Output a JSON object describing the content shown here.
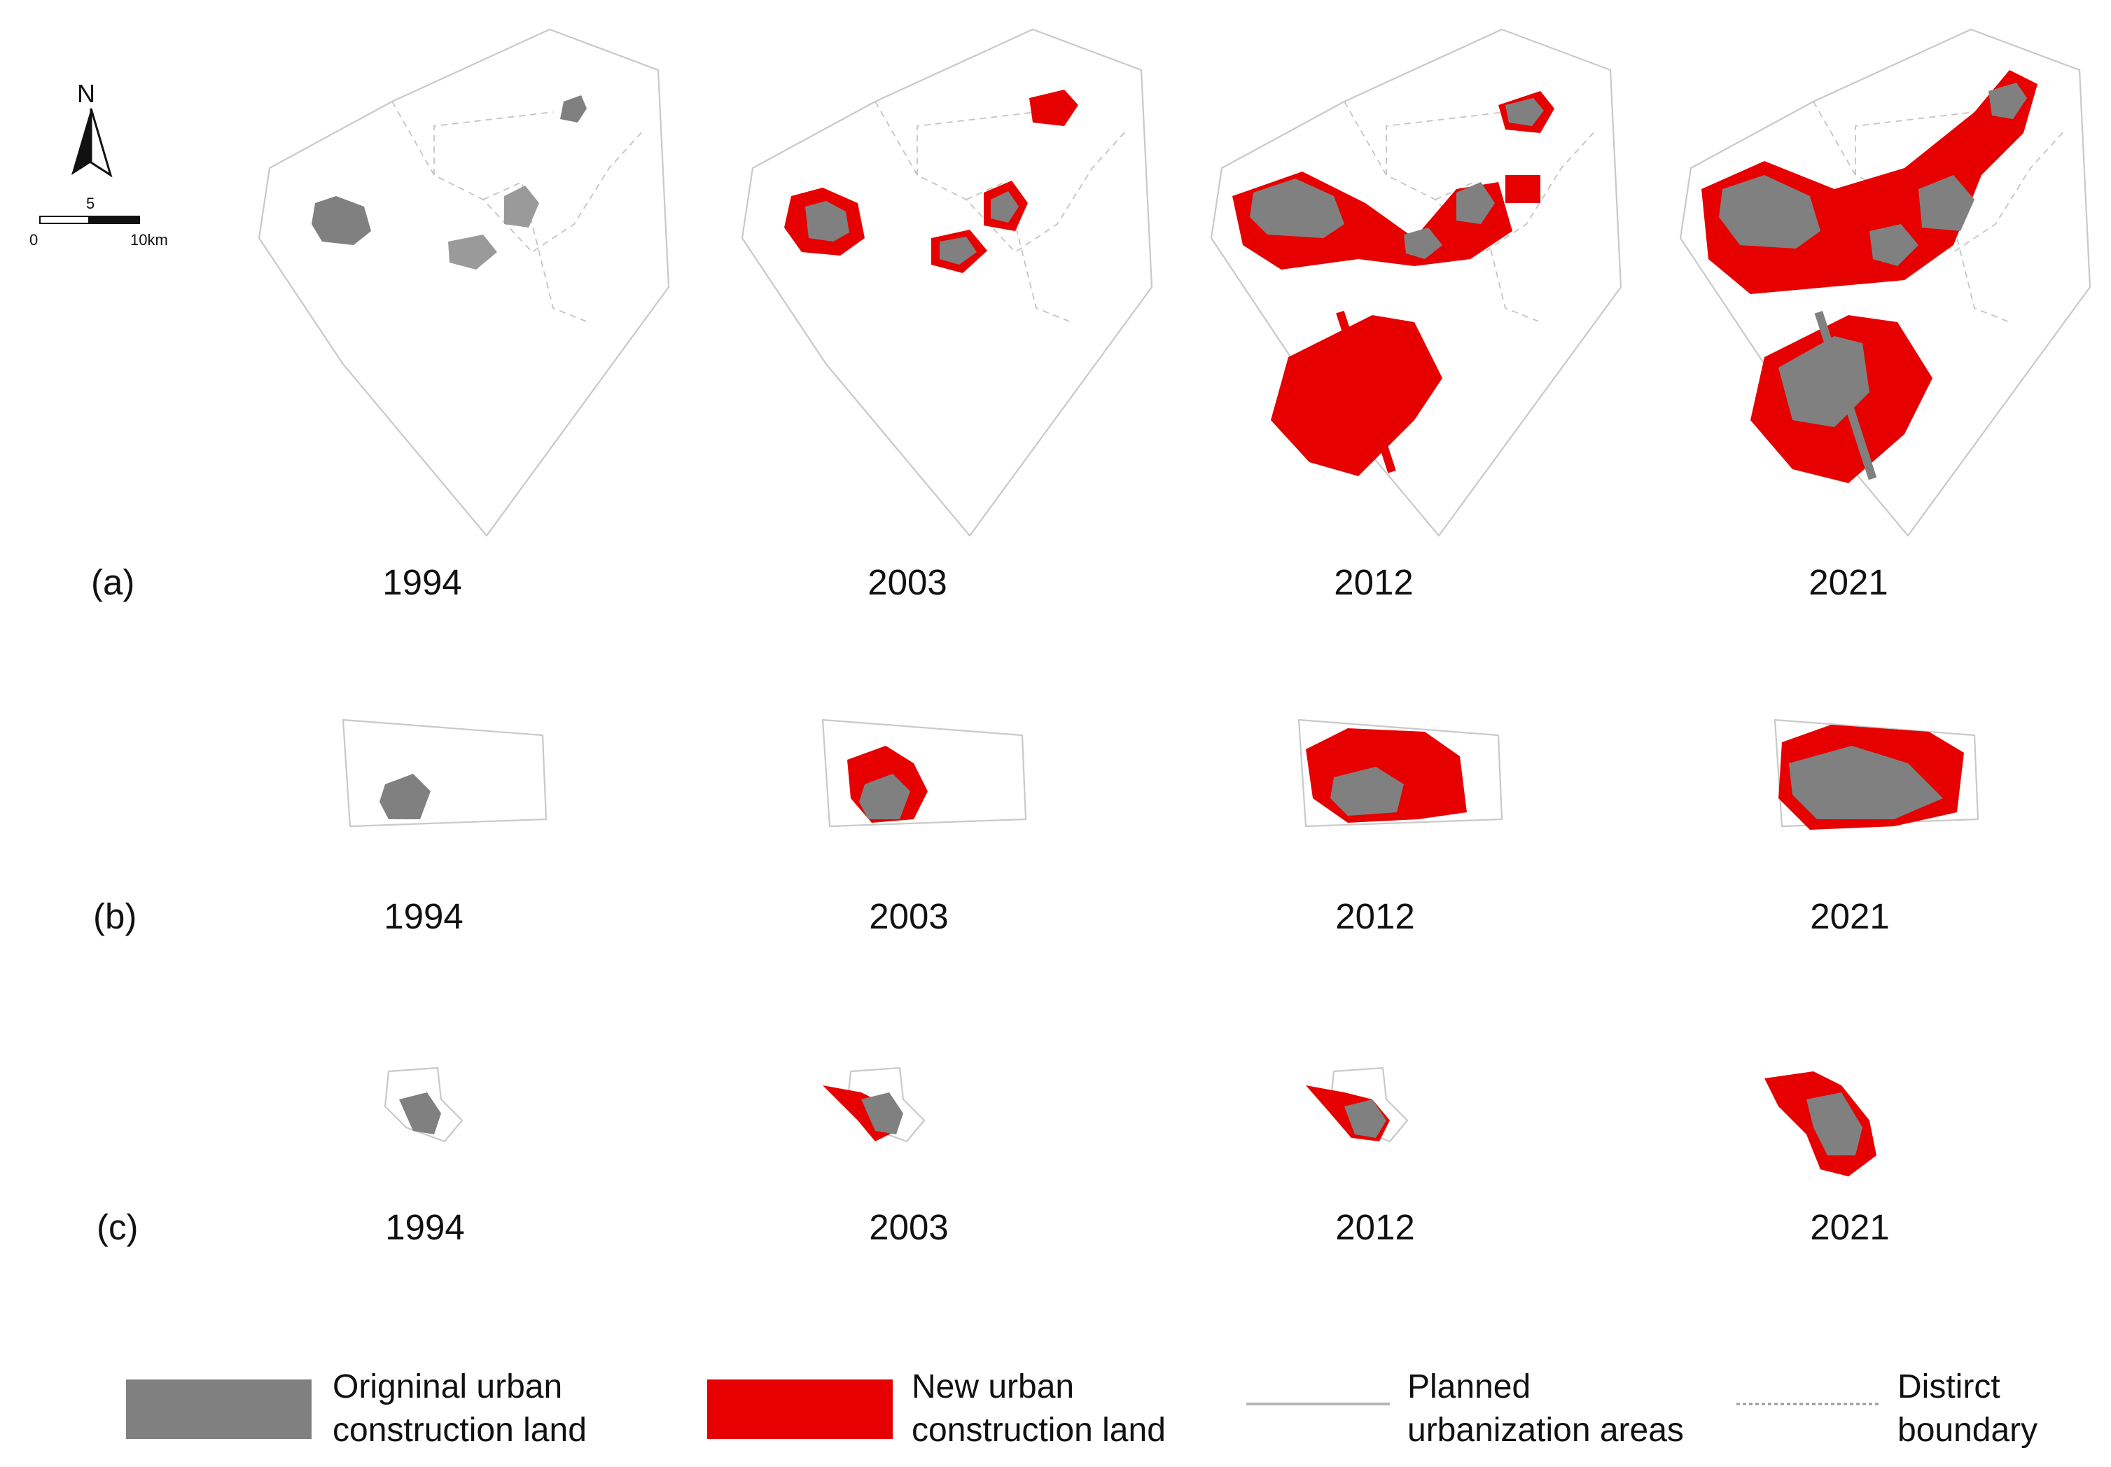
{
  "rows": [
    {
      "letter": "(a)",
      "years": [
        "1994",
        "2003",
        "2012",
        "2021"
      ]
    },
    {
      "letter": "(b)",
      "years": [
        "1994",
        "2003",
        "2012",
        "2021"
      ]
    },
    {
      "letter": "(c)",
      "years": [
        "1994",
        "2003",
        "2012",
        "2021"
      ]
    }
  ],
  "north_arrow": {
    "label": "N",
    "icon": "north-arrow-icon"
  },
  "scale_bar": {
    "mid_label": "5",
    "start_label": "0",
    "end_label": "10km"
  },
  "legend": [
    {
      "line1": "Origninal urban",
      "line2": "construction land",
      "symbol": "fill",
      "color": "#808080"
    },
    {
      "line1": "New urban",
      "line2": "construction land",
      "symbol": "fill",
      "color": "#e60000"
    },
    {
      "line1": "Planned",
      "line2": "urbanization areas",
      "symbol": "line",
      "color": "#b5b5b5"
    },
    {
      "line1": "Distirct",
      "line2": "boundary",
      "symbol": "dashed-line",
      "color": "#9a9a9a"
    }
  ],
  "colors": {
    "original": "#808080",
    "new": "#e60000",
    "boundary": "#c9c9c9"
  }
}
